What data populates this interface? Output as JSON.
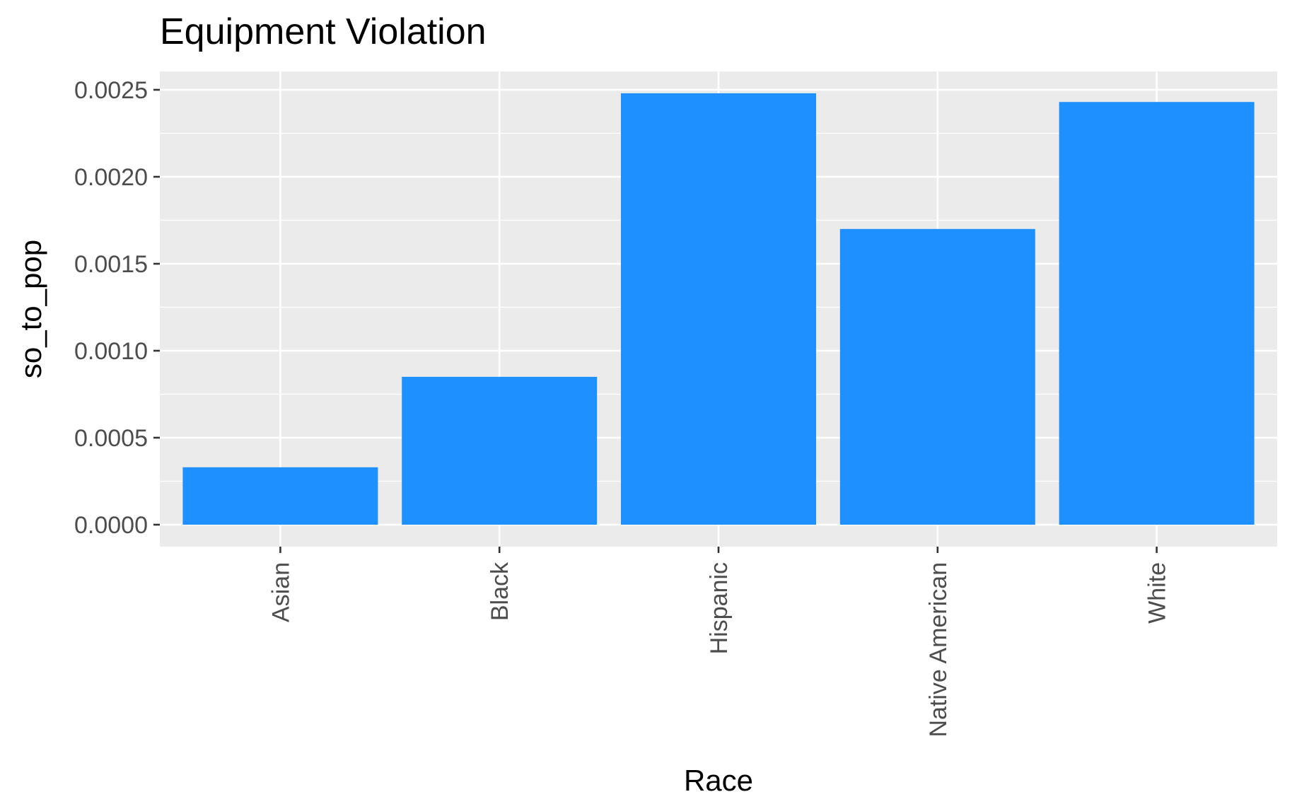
{
  "chart_data": {
    "type": "bar",
    "title": "Equipment Violation",
    "xlabel": "Race",
    "ylabel": "so_to_pop",
    "categories": [
      "Asian",
      "Black",
      "Hispanic",
      "Native American",
      "White"
    ],
    "values": [
      0.00033,
      0.00085,
      0.00248,
      0.0017,
      0.00243
    ],
    "ylim": [
      0,
      0.0026
    ],
    "yticks": [
      0,
      0.0005,
      0.001,
      0.0015,
      0.002,
      0.0025
    ],
    "ytick_labels": [
      "0.0000",
      "0.0005",
      "0.0010",
      "0.0015",
      "0.0020",
      "0.0025"
    ],
    "grid": true,
    "legend": "none",
    "colors": {
      "bar": "#1E90FF",
      "panel": "#EBEBEB",
      "grid": "#FFFFFF",
      "tick": "#333333",
      "tick_text": "#4D4D4D"
    }
  }
}
